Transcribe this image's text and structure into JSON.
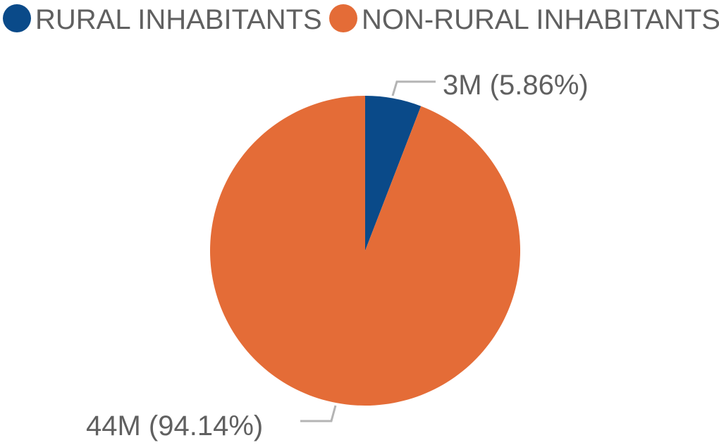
{
  "chart_data": {
    "type": "pie",
    "categories": [
      "RURAL INHABITANTS",
      "NON-RURAL INHABITANTS"
    ],
    "values": [
      3,
      44
    ],
    "unit": "M",
    "percentages": [
      5.86,
      94.14
    ],
    "data_labels": [
      "3M (5.86%)",
      "44M (94.14%)"
    ],
    "colors": [
      "#0a4a89",
      "#e46c37"
    ],
    "legend": {
      "position": "top-left",
      "entries": [
        "RURAL INHABITANTS",
        "NON-RURAL INHABITANTS"
      ]
    },
    "start_angle": "12 o'clock",
    "direction": "clockwise"
  }
}
